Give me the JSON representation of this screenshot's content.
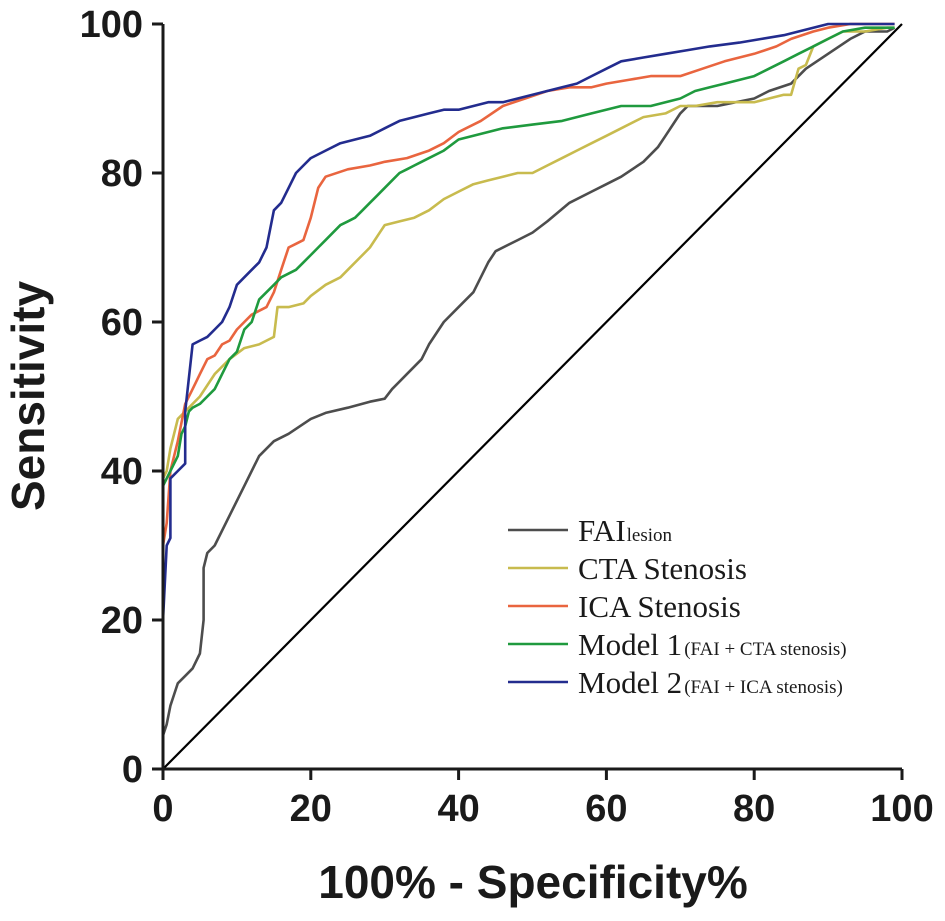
{
  "chart_data": {
    "type": "line",
    "title": "",
    "xlabel": "100% - Specificity%",
    "ylabel": "Sensitivity",
    "xlim": [
      0,
      100
    ],
    "ylim": [
      0,
      100
    ],
    "xticks": [
      0,
      20,
      40,
      60,
      80,
      100
    ],
    "yticks": [
      0,
      20,
      40,
      60,
      80,
      100
    ],
    "grid": false,
    "legend_position": "bottom-right",
    "colors": {
      "axis": "#1a1a1a",
      "reference": "#000000"
    },
    "reference_line": {
      "name": "Reference",
      "x": [
        0,
        100
      ],
      "y": [
        0,
        100
      ]
    },
    "series": [
      {
        "name": "FAI",
        "name_sub": "lesion",
        "color": "#4d4d4d",
        "x": [
          0,
          0,
          0.5,
          1,
          1.5,
          2,
          3,
          4,
          5,
          5.5,
          5.5,
          6,
          7,
          9,
          11,
          13,
          15,
          17,
          20,
          22,
          25,
          28,
          30,
          31,
          33,
          35,
          36,
          38,
          40,
          42,
          44,
          45,
          48,
          50,
          52,
          55,
          58,
          60,
          62,
          65,
          67,
          68,
          70,
          71,
          75,
          80,
          82,
          85,
          87,
          90,
          93,
          95,
          98,
          99
        ],
        "y": [
          0,
          4.5,
          6,
          8.5,
          10,
          11.5,
          12.5,
          13.5,
          15.5,
          20,
          27,
          29,
          30,
          34,
          38,
          42,
          44,
          45,
          47,
          47.8,
          48.5,
          49.3,
          49.7,
          51,
          53,
          55,
          57,
          60,
          62,
          64,
          68,
          69.5,
          71,
          72,
          73.5,
          76,
          77.5,
          78.5,
          79.5,
          81.5,
          83.5,
          85,
          88,
          89,
          89,
          90,
          91,
          92,
          94,
          96,
          98,
          99,
          99,
          99.5
        ]
      },
      {
        "name": "CTA Stenosis",
        "color": "#c8bb4e",
        "x": [
          0,
          0,
          0.5,
          1,
          1.5,
          2,
          3,
          4,
          5,
          7,
          9,
          11,
          13,
          15,
          15.5,
          17,
          19,
          20,
          22,
          24,
          25,
          27,
          28,
          30,
          32,
          34,
          36,
          38,
          40,
          42,
          44,
          46,
          48,
          50,
          52,
          54,
          56,
          58,
          60,
          62,
          65,
          68,
          70,
          72,
          75,
          78,
          80,
          82,
          84,
          85,
          86,
          87,
          88,
          90,
          92,
          95,
          98,
          99
        ],
        "y": [
          38,
          39,
          40,
          43,
          45,
          47,
          48,
          49,
          50,
          53,
          55,
          56.5,
          57,
          58,
          62,
          62,
          62.5,
          63.5,
          65,
          66,
          67,
          69,
          70,
          73,
          73.5,
          74,
          75,
          76.5,
          77.5,
          78.5,
          79,
          79.5,
          80,
          80,
          81,
          82,
          83,
          84,
          85,
          86,
          87.5,
          88,
          89,
          89,
          89.5,
          89.5,
          89.5,
          90,
          90.5,
          90.5,
          94,
          94.5,
          97,
          98,
          99,
          99,
          99.5,
          99.5
        ]
      },
      {
        "name": "ICA Stenosis",
        "color": "#e9653f",
        "x": [
          0,
          0,
          0.5,
          1,
          2,
          3,
          4,
          5,
          6,
          7,
          8,
          9,
          10,
          11,
          12,
          13,
          14,
          15,
          16,
          17,
          18,
          19,
          20,
          21,
          22,
          25,
          28,
          30,
          33,
          36,
          38,
          40,
          43,
          46,
          49,
          52,
          55,
          58,
          60,
          63,
          66,
          70,
          73,
          76,
          80,
          83,
          85,
          88,
          90,
          93,
          95,
          98,
          99
        ],
        "y": [
          27,
          30,
          33,
          40,
          44,
          49,
          51,
          53,
          55,
          55.5,
          57,
          57.5,
          59,
          60,
          61,
          61.5,
          62,
          64,
          67,
          70,
          70.5,
          71,
          74,
          78,
          79.5,
          80.5,
          81,
          81.5,
          82,
          83,
          84,
          85.5,
          87,
          89,
          90,
          91,
          91.5,
          91.5,
          92,
          92.5,
          93,
          93,
          94,
          95,
          96,
          97,
          98,
          99,
          99.5,
          100,
          100,
          100,
          100
        ]
      },
      {
        "name": "Model 1",
        "name_sub": "(FAI + CTA stenosis)",
        "color": "#1f9a3e",
        "x": [
          0,
          0,
          0.5,
          1,
          1.5,
          2,
          2.5,
          3,
          3.5,
          4,
          5,
          6,
          7,
          8,
          9,
          10,
          11,
          12,
          13,
          14,
          15,
          16,
          17,
          18,
          19,
          20,
          21,
          22,
          23,
          24,
          25,
          26,
          27,
          28,
          29,
          30,
          31,
          32,
          33,
          34,
          35,
          36,
          38,
          40,
          42,
          44,
          46,
          50,
          54,
          58,
          62,
          66,
          70,
          72,
          74,
          76,
          78,
          80,
          82,
          84,
          86,
          88,
          90,
          92,
          95,
          99
        ],
        "y": [
          31,
          38,
          39,
          40,
          41,
          42,
          45,
          46,
          48,
          48.5,
          49,
          50,
          51,
          53,
          55,
          56,
          59,
          60,
          63,
          64,
          65,
          66,
          66.5,
          67,
          68,
          69,
          70,
          71,
          72,
          73,
          73.5,
          74,
          75,
          76,
          77,
          78,
          79,
          80,
          80.5,
          81,
          81.5,
          82,
          83,
          84.5,
          85,
          85.5,
          86,
          86.5,
          87,
          88,
          89,
          89,
          90,
          91,
          91.5,
          92,
          92.5,
          93,
          94,
          95,
          96,
          97,
          98,
          99,
          99.5,
          99.5
        ]
      },
      {
        "name": "Model 2",
        "name_sub": "(FAI + ICA stenosis)",
        "color": "#232c8e",
        "x": [
          0,
          0,
          0.5,
          1,
          1,
          2,
          3,
          3,
          4,
          5,
          6,
          7,
          8,
          9,
          10,
          11,
          12,
          13,
          14,
          15,
          16,
          17,
          18,
          19,
          20,
          22,
          24,
          26,
          28,
          30,
          32,
          34,
          36,
          38,
          40,
          42,
          44,
          46,
          48,
          50,
          52,
          54,
          56,
          58,
          60,
          62,
          65,
          68,
          71,
          74,
          78,
          81,
          84,
          86,
          88,
          90,
          93,
          96,
          99
        ],
        "y": [
          5,
          20,
          30,
          31,
          39,
          40,
          41,
          48,
          57,
          57.5,
          58,
          59,
          60,
          62,
          65,
          66,
          67,
          68,
          70,
          75,
          76,
          78,
          80,
          81,
          82,
          83,
          84,
          84.5,
          85,
          86,
          87,
          87.5,
          88,
          88.5,
          88.5,
          89,
          89.5,
          89.5,
          90,
          90.5,
          91,
          91.5,
          92,
          93,
          94,
          95,
          95.5,
          96,
          96.5,
          97,
          97.5,
          98,
          98.5,
          99,
          99.5,
          100,
          100,
          100,
          100
        ]
      }
    ]
  }
}
